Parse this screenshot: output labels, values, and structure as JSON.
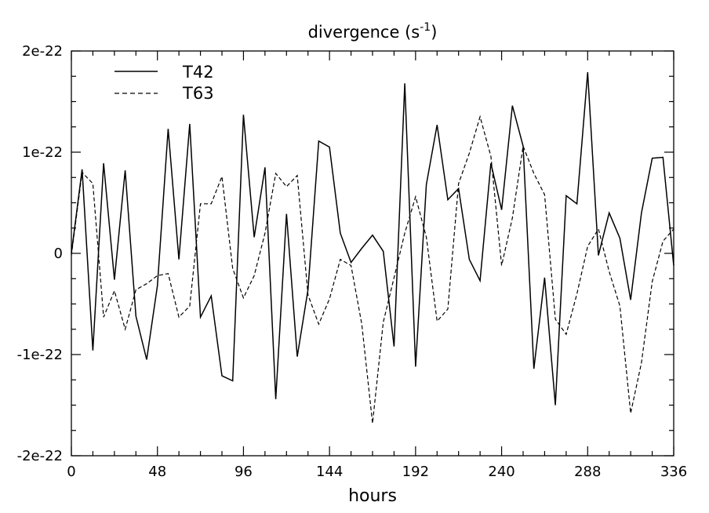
{
  "chart_data": {
    "type": "line",
    "title": "divergence (s",
    "title_sup": "-1",
    "title_end": ")",
    "xlabel": "hours",
    "ylabel": "",
    "xlim": [
      0,
      336
    ],
    "ylim": [
      -2e-22,
      2e-22
    ],
    "x_ticks": [
      0,
      48,
      96,
      144,
      192,
      240,
      288,
      336
    ],
    "y_ticks": [
      {
        "value": 2e-22,
        "label": "2e-22"
      },
      {
        "value": 1e-22,
        "label": "1e-22"
      },
      {
        "value": 0,
        "label": "0"
      },
      {
        "value": -1e-22,
        "label": "-1e-22"
      },
      {
        "value": -2e-22,
        "label": "-2e-22"
      }
    ],
    "grid": false,
    "legend_position": "top-left",
    "x": [
      0,
      6,
      12,
      18,
      24,
      30,
      36,
      42,
      48,
      54,
      60,
      66,
      72,
      78,
      84,
      90,
      96,
      102,
      108,
      114,
      120,
      126,
      132,
      138,
      144,
      150,
      156,
      162,
      168,
      174,
      180,
      186,
      192,
      198,
      204,
      210,
      216,
      222,
      228,
      234,
      240,
      246,
      252,
      258,
      264,
      270,
      276,
      282,
      288,
      294,
      300,
      306,
      312,
      318,
      324,
      330,
      336
    ],
    "series": [
      {
        "name": "T42",
        "line_style": "solid",
        "values": [
          0,
          8.3e-23,
          -9.6e-23,
          8.9e-23,
          -2.6e-23,
          8.2e-23,
          -6.2e-23,
          -1.05e-22,
          -3.2e-23,
          1.23e-22,
          -6e-24,
          1.28e-22,
          -6.3e-23,
          -4.2e-23,
          -1.21e-22,
          -1.26e-22,
          1.37e-22,
          1.6e-23,
          8.5e-23,
          -1.44e-22,
          3.9e-23,
          -1.02e-22,
          -3.6e-23,
          1.11e-22,
          1.05e-22,
          2e-23,
          -9e-24,
          5e-24,
          1.8e-23,
          2e-24,
          -9.2e-23,
          1.68e-22,
          -1.12e-22,
          6.8e-23,
          1.27e-22,
          5.3e-23,
          6.4e-23,
          -6e-24,
          -2.7e-23,
          8.9e-23,
          4.3e-23,
          1.46e-22,
          1.06e-22,
          -1.14e-22,
          -2.4e-23,
          -1.5e-22,
          5.7e-23,
          4.9e-23,
          1.79e-22,
          -2e-24,
          4e-23,
          1.5e-23,
          -4.6e-23,
          4e-23,
          9.4e-23,
          9.5e-23,
          -1.2e-23
        ]
      },
      {
        "name": "T63",
        "line_style": "dashed",
        "values": [
          -2e-24,
          8e-23,
          6.9e-23,
          -6.3e-23,
          -3.7e-23,
          -7.5e-23,
          -3.6e-23,
          -3e-23,
          -2.2e-23,
          -2e-23,
          -6.3e-23,
          -5.2e-23,
          4.9e-23,
          4.9e-23,
          7.6e-23,
          -1.5e-23,
          -4.4e-23,
          -2.2e-23,
          2e-23,
          7.9e-23,
          6.6e-23,
          7.7e-23,
          -4.1e-23,
          -7e-23,
          -4.5e-23,
          -6e-24,
          -1.2e-23,
          -7e-23,
          -1.68e-22,
          -6.8e-23,
          -2.4e-23,
          2e-23,
          5.6e-23,
          1.6e-23,
          -6.7e-23,
          -5.5e-23,
          6.9e-23,
          9.9e-23,
          1.35e-22,
          9.6e-23,
          -1.2e-23,
          3.5e-23,
          1.06e-22,
          7.9e-23,
          5.8e-23,
          -6.5e-23,
          -8e-23,
          -4e-23,
          7e-24,
          2.4e-23,
          -1.8e-23,
          -5.2e-23,
          -1.58e-22,
          -1.08e-22,
          -2.8e-23,
          1.2e-23,
          2.4e-23
        ]
      }
    ]
  }
}
